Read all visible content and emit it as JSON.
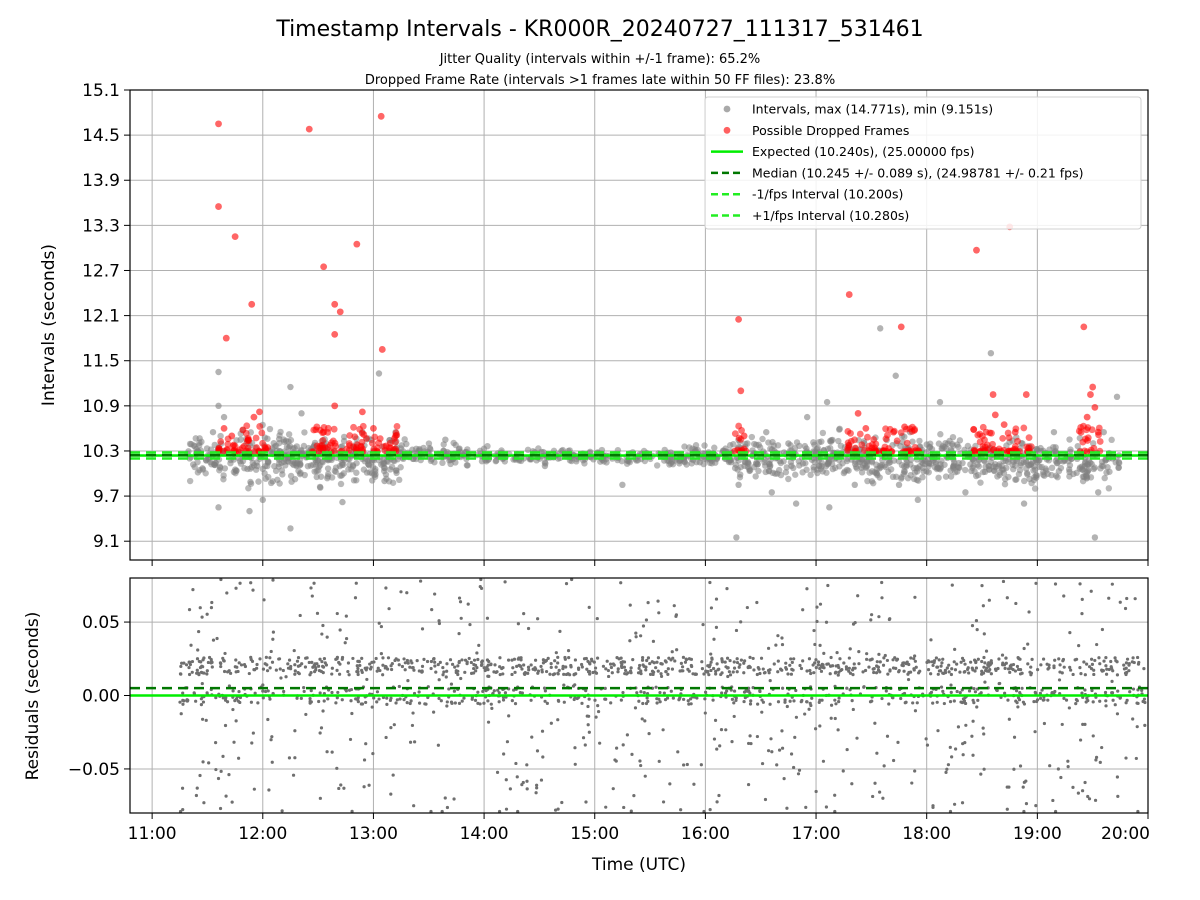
{
  "title": "Timestamp Intervals - KR000R_20240727_111317_531461",
  "subtitle_1": "Jitter Quality (intervals within +/-1 frame): 65.2%",
  "subtitle_2": "Dropped Frame Rate (intervals >1 frames late within 50 FF files): 23.8%",
  "colors": {
    "intervals": "#808080",
    "dropped": "#ff0000",
    "expected": "#00ee00",
    "median": "#007700",
    "band": "#22ee22",
    "residuals": "#6f6f6f",
    "grid": "#b0b0b0"
  },
  "chart_data": [
    {
      "type": "scatter",
      "panel": "top",
      "ylabel": "Intervals (seconds)",
      "xlim_hours": [
        10.8,
        20.0
      ],
      "ylim": [
        8.85,
        15.1
      ],
      "grid": true,
      "legend_placement": "upper right",
      "yticks": [
        "9.1",
        "9.7",
        "10.3",
        "10.9",
        "11.5",
        "12.1",
        "12.7",
        "13.3",
        "13.9",
        "14.5",
        "15.1"
      ],
      "ytick_values": [
        9.1,
        9.7,
        10.3,
        10.9,
        11.5,
        12.1,
        12.7,
        13.3,
        13.9,
        14.5,
        15.1
      ],
      "legend": [
        {
          "label": "Intervals, max (14.771s), min (9.151s)",
          "kind": "dot",
          "color": "#9a9a9a"
        },
        {
          "label": "Possible Dropped Frames",
          "kind": "dot",
          "color": "#ff4444"
        },
        {
          "label": "Expected (10.240s), (25.00000 fps)",
          "kind": "solid",
          "color": "#00ee00"
        },
        {
          "label": "Median (10.245 +/- 0.089 s), (24.98781 +/- 0.21 fps)",
          "kind": "dashed",
          "color": "#007700"
        },
        {
          "label": "-1/fps Interval (10.200s)",
          "kind": "dashed",
          "color": "#22ee22"
        },
        {
          "label": "+1/fps Interval (10.280s)",
          "kind": "dashed",
          "color": "#22ee22"
        }
      ],
      "series": [
        {
          "name": "Intervals, max (14.771s), min (9.151s)",
          "role": "intervals",
          "points": [
            [
              11.55,
              10.55
            ],
            [
              11.6,
              11.35
            ],
            [
              11.6,
              9.55
            ],
            [
              11.6,
              10.9
            ],
            [
              11.65,
              10.75
            ],
            [
              11.8,
              10.45
            ],
            [
              11.88,
              9.5
            ],
            [
              11.95,
              10.1
            ],
            [
              12.0,
              9.65
            ],
            [
              12.25,
              11.15
            ],
            [
              12.25,
              9.27
            ],
            [
              12.35,
              10.8
            ],
            [
              12.72,
              9.62
            ],
            [
              12.9,
              10.55
            ],
            [
              13.05,
              11.33
            ],
            [
              13.1,
              9.9
            ],
            [
              13.2,
              10.55
            ],
            [
              13.65,
              10.45
            ],
            [
              14.55,
              10.1
            ],
            [
              14.7,
              10.3
            ],
            [
              15.25,
              9.85
            ],
            [
              15.95,
              10.15
            ],
            [
              16.28,
              9.15
            ],
            [
              16.3,
              9.85
            ],
            [
              16.55,
              10.55
            ],
            [
              16.6,
              9.75
            ],
            [
              16.75,
              10.4
            ],
            [
              16.82,
              9.6
            ],
            [
              16.92,
              10.75
            ],
            [
              17.1,
              10.95
            ],
            [
              17.12,
              9.55
            ],
            [
              17.35,
              9.85
            ],
            [
              17.58,
              11.93
            ],
            [
              17.72,
              11.3
            ],
            [
              17.75,
              9.85
            ],
            [
              17.85,
              10.55
            ],
            [
              17.92,
              9.65
            ],
            [
              18.05,
              10.2
            ],
            [
              18.12,
              10.95
            ],
            [
              18.35,
              9.75
            ],
            [
              18.58,
              11.6
            ],
            [
              18.6,
              10.25
            ],
            [
              18.88,
              9.6
            ],
            [
              19.0,
              10.15
            ],
            [
              19.15,
              10.55
            ],
            [
              19.45,
              9.95
            ],
            [
              19.52,
              9.15
            ],
            [
              19.55,
              9.75
            ],
            [
              19.6,
              10.55
            ],
            [
              19.68,
              10.2
            ],
            [
              19.72,
              11.02
            ]
          ],
          "bands": [
            [
              11.3,
              11.75,
              9.8,
              10.6,
              70
            ],
            [
              11.75,
              12.25,
              9.7,
              10.75,
              110
            ],
            [
              12.25,
              12.75,
              9.75,
              10.65,
              120
            ],
            [
              12.75,
              13.3,
              9.8,
              10.6,
              110
            ],
            [
              13.3,
              14.05,
              10.05,
              10.45,
              80
            ],
            [
              14.05,
              15.0,
              10.1,
              10.35,
              90
            ],
            [
              15.0,
              15.8,
              10.05,
              10.35,
              80
            ],
            [
              15.8,
              16.25,
              10.0,
              10.45,
              70
            ],
            [
              16.25,
              16.95,
              9.8,
              10.6,
              120
            ],
            [
              16.95,
              17.45,
              9.8,
              10.65,
              110
            ],
            [
              17.45,
              18.0,
              9.75,
              10.6,
              110
            ],
            [
              18.0,
              18.55,
              9.75,
              10.65,
              110
            ],
            [
              18.55,
              19.05,
              9.7,
              10.6,
              110
            ],
            [
              19.05,
              19.75,
              9.75,
              10.55,
              110
            ]
          ]
        },
        {
          "name": "Possible Dropped Frames",
          "role": "dropped",
          "points": [
            [
              11.6,
              14.65
            ],
            [
              11.6,
              13.55
            ],
            [
              11.67,
              11.8
            ],
            [
              11.75,
              13.15
            ],
            [
              11.9,
              12.25
            ],
            [
              11.92,
              10.75
            ],
            [
              11.97,
              10.82
            ],
            [
              11.65,
              10.6
            ],
            [
              11.72,
              10.5
            ],
            [
              11.82,
              10.58
            ],
            [
              12.42,
              14.58
            ],
            [
              12.55,
              12.75
            ],
            [
              12.65,
              12.25
            ],
            [
              12.7,
              12.15
            ],
            [
              12.65,
              11.85
            ],
            [
              12.65,
              10.9
            ],
            [
              12.85,
              13.05
            ],
            [
              12.9,
              10.82
            ],
            [
              13.07,
              14.75
            ],
            [
              13.08,
              11.65
            ],
            [
              13.0,
              10.6
            ],
            [
              12.55,
              10.55
            ],
            [
              16.3,
              12.05
            ],
            [
              16.32,
              11.1
            ],
            [
              16.35,
              10.5
            ],
            [
              17.3,
              12.38
            ],
            [
              17.38,
              10.8
            ],
            [
              17.45,
              10.6
            ],
            [
              17.77,
              11.95
            ],
            [
              17.8,
              10.62
            ],
            [
              17.7,
              10.55
            ],
            [
              18.45,
              12.97
            ],
            [
              18.75,
              13.28
            ],
            [
              18.6,
              11.05
            ],
            [
              18.62,
              10.78
            ],
            [
              18.7,
              10.65
            ],
            [
              18.9,
              11.05
            ],
            [
              18.8,
              10.55
            ],
            [
              19.42,
              11.95
            ],
            [
              19.48,
              11.05
            ],
            [
              19.5,
              11.15
            ],
            [
              19.52,
              10.88
            ],
            [
              19.45,
              10.75
            ],
            [
              19.55,
              10.55
            ]
          ],
          "clusters": [
            [
              11.6,
              12.05,
              45
            ],
            [
              12.4,
              12.95,
              55
            ],
            [
              12.95,
              13.22,
              25
            ],
            [
              16.25,
              16.4,
              12
            ],
            [
              17.28,
              17.55,
              30
            ],
            [
              17.6,
              17.95,
              35
            ],
            [
              18.42,
              18.95,
              55
            ],
            [
              19.35,
              19.6,
              20
            ]
          ]
        }
      ],
      "hlines": [
        {
          "name": "Expected",
          "y": 10.24,
          "style": "solid"
        },
        {
          "name": "Median",
          "y": 10.245,
          "style": "dashed"
        },
        {
          "name": "-1/fps",
          "y": 10.2,
          "style": "dashed"
        },
        {
          "name": "+1/fps",
          "y": 10.28,
          "style": "dashed"
        }
      ]
    },
    {
      "type": "scatter",
      "panel": "bottom",
      "xlabel": "Time (UTC)",
      "ylabel": "Residuals (seconds)",
      "xlim_hours": [
        10.8,
        20.0
      ],
      "ylim": [
        -0.08,
        0.08
      ],
      "grid": true,
      "yticks": [
        "−0.05",
        "0.00",
        "0.05"
      ],
      "ytick_values": [
        -0.05,
        0.0,
        0.05
      ],
      "xticks": [
        "11:00",
        "12:00",
        "13:00",
        "14:00",
        "15:00",
        "16:00",
        "17:00",
        "18:00",
        "19:00",
        "20:00"
      ],
      "xtick_values": [
        11,
        12,
        13,
        14,
        15,
        16,
        17,
        18,
        19,
        20
      ],
      "residuals": {
        "x_range": [
          11.25,
          20.0
        ],
        "count": 1800
      },
      "hlines": [
        {
          "name": "Expected",
          "y": 0.0,
          "style": "solid"
        },
        {
          "name": "Median",
          "y": 0.005,
          "style": "dashed"
        }
      ]
    }
  ]
}
